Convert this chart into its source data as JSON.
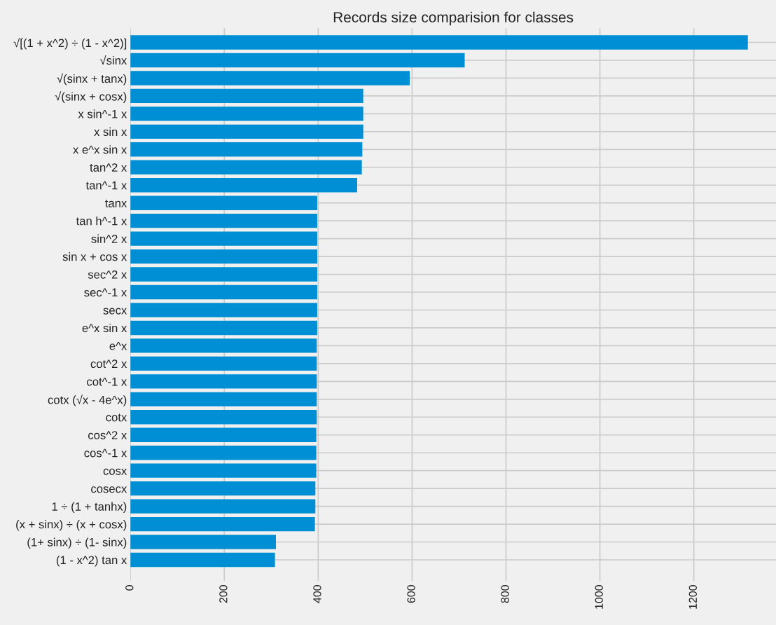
{
  "chart_data": {
    "type": "bar",
    "orientation": "horizontal",
    "title": "Records size comparision for classes",
    "categories": [
      "√[(1 + x^2) ÷ (1 - x^2)]",
      "√sinx",
      "√(sinx + tanx)",
      "√(sinx + cosx)",
      "x sin^-1 x",
      "x sin x",
      "x e^x sin x",
      "tan^2 x",
      "tan^-1 x",
      "tanx",
      "tan h^-1 x",
      "sin^2 x",
      "sin x + cos x",
      "sec^2 x",
      "sec^-1 x",
      "secx",
      "e^x sin x",
      "e^x",
      "cot^2 x",
      "cot^-1 x",
      "cotx (√x - 4e^x)",
      "cotx",
      "cos^2 x",
      "cos^-1 x",
      "cosx",
      "cosecx",
      "1 ÷ (1 + tanhx)",
      "(x + sinx) ÷ (x + cosx)",
      "(1+ sinx) ÷ (1- sinx)",
      "(1 - x^2) tan x"
    ],
    "values": [
      1315,
      712,
      595,
      496,
      496,
      496,
      494,
      493,
      483,
      398,
      398,
      398,
      398,
      398,
      398,
      398,
      398,
      397,
      397,
      397,
      397,
      397,
      396,
      396,
      396,
      394,
      394,
      393,
      310,
      308
    ],
    "color": "#008fd5",
    "xlim": [
      0,
      1375
    ],
    "xticks": [
      0,
      200,
      400,
      600,
      800,
      1000,
      1200
    ],
    "grid": true
  }
}
